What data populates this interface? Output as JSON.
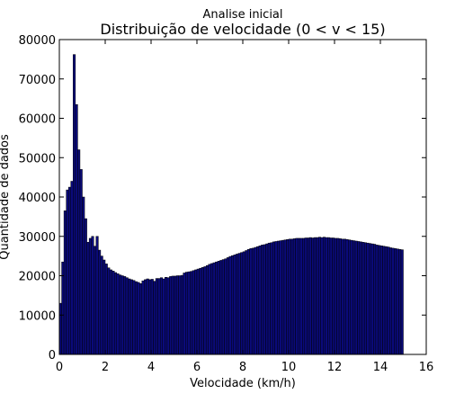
{
  "chart_data": {
    "type": "bar",
    "subtitle": "Analise inicial",
    "title": "Distribuição de velocidade (0 < v < 15)",
    "xlabel": "Velocidade (km/h)",
    "ylabel": "Quantidade de dados",
    "xlim": [
      0,
      16
    ],
    "ylim": [
      0,
      80000
    ],
    "xticks": [
      0,
      2,
      4,
      6,
      8,
      10,
      12,
      14,
      16
    ],
    "yticks": [
      0,
      10000,
      20000,
      30000,
      40000,
      50000,
      60000,
      70000,
      80000
    ],
    "bin_width": 0.1,
    "bins_start": 0,
    "bar_color": "#0a0a7a",
    "edge_color": "#000000",
    "grid": false,
    "legend": "none",
    "values": [
      13000,
      23500,
      36500,
      41800,
      42500,
      44000,
      76200,
      63500,
      52000,
      47000,
      40000,
      34500,
      28500,
      29500,
      30000,
      27500,
      30000,
      26500,
      25000,
      24000,
      23000,
      22000,
      21500,
      21200,
      20800,
      20500,
      20200,
      20000,
      19800,
      19500,
      19200,
      19000,
      18800,
      18500,
      18300,
      18000,
      18700,
      19000,
      19200,
      19000,
      19100,
      18600,
      19300,
      19300,
      19500,
      19200,
      19600,
      19500,
      19800,
      19900,
      19900,
      20000,
      20000,
      20100,
      20700,
      20900,
      21000,
      21100,
      21300,
      21500,
      21700,
      21900,
      22100,
      22300,
      22600,
      22900,
      23100,
      23300,
      23500,
      23700,
      23900,
      24100,
      24300,
      24600,
      24900,
      25100,
      25300,
      25500,
      25700,
      25900,
      26100,
      26400,
      26700,
      26900,
      27000,
      27200,
      27400,
      27600,
      27800,
      27900,
      28100,
      28300,
      28400,
      28600,
      28700,
      28800,
      28900,
      29000,
      29100,
      29200,
      29300,
      29300,
      29400,
      29500,
      29500,
      29500,
      29500,
      29600,
      29600,
      29700,
      29600,
      29700,
      29700,
      29800,
      29700,
      29800,
      29700,
      29700,
      29600,
      29600,
      29500,
      29500,
      29400,
      29300,
      29300,
      29200,
      29100,
      29000,
      28900,
      28800,
      28700,
      28600,
      28500,
      28400,
      28300,
      28200,
      28100,
      28000,
      27800,
      27700,
      27600,
      27500,
      27400,
      27300,
      27100,
      27000,
      26900,
      26800,
      26700,
      26600
    ]
  }
}
